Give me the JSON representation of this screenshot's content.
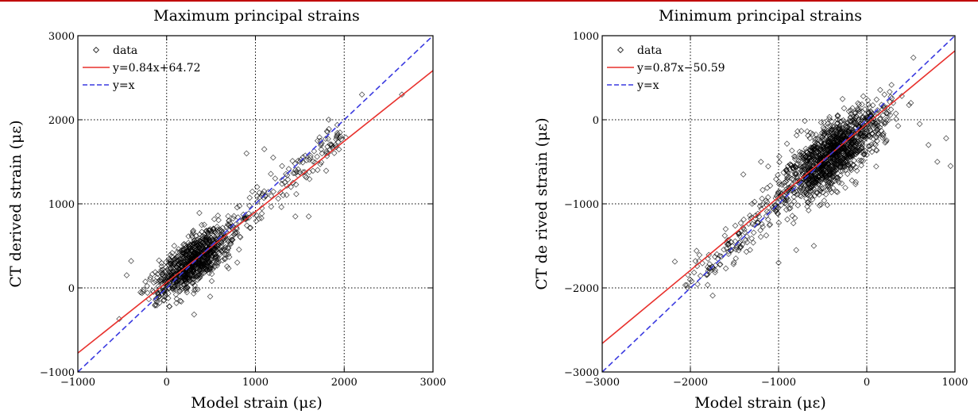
{
  "chart_data": [
    {
      "type": "scatter",
      "title": "Maximum principal strains",
      "xlabel": "Model strain (με)",
      "ylabel": "CT derived strain (με)",
      "xlim": [
        -1000,
        3000
      ],
      "ylim": [
        -1000,
        3000
      ],
      "xticks": [
        "−1000",
        "0",
        "1000",
        "2000",
        "3000"
      ],
      "yticks": [
        "−1000",
        "0",
        "1000",
        "2000",
        "3000"
      ],
      "xtick_values": [
        -1000,
        0,
        1000,
        2000,
        3000
      ],
      "ytick_values": [
        -1000,
        0,
        1000,
        2000,
        3000
      ],
      "grid": true,
      "legend_placement": "top-left",
      "series": [
        {
          "name": "data",
          "kind": "scatter",
          "marker": "diamond",
          "color": "#000000",
          "cluster": {
            "center": [
              300,
              310
            ],
            "count": 900,
            "slope": 0.9,
            "spread_major": 380,
            "spread_minor": 150
          },
          "tail": {
            "from": [
              700,
              700
            ],
            "to": [
              2000,
              1850
            ],
            "count": 140,
            "jitter": 200
          },
          "outliers": [
            [
              2650,
              2300
            ],
            [
              2200,
              2300
            ],
            [
              1700,
              1750
            ],
            [
              1500,
              1500
            ],
            [
              1300,
              1450
            ],
            [
              1600,
              850
            ],
            [
              1450,
              850
            ],
            [
              1900,
              1700
            ],
            [
              1750,
              1600
            ],
            [
              -450,
              150
            ],
            [
              -400,
              320
            ],
            [
              1100,
              1650
            ],
            [
              1200,
              1550
            ],
            [
              900,
              1600
            ],
            [
              1400,
              1200
            ]
          ]
        },
        {
          "name": "y=0.84x+64.72",
          "kind": "line",
          "color": "#e8302c",
          "style": "solid",
          "slope": 0.84,
          "intercept": 64.72
        },
        {
          "name": "y=x",
          "kind": "line",
          "color": "#3a3ae0",
          "style": "dashed",
          "slope": 1,
          "intercept": 0
        }
      ]
    },
    {
      "type": "scatter",
      "title": "Minimum principal strains",
      "xlabel": "Model strain (με)",
      "ylabel": "CT de rived strain (με)",
      "xlim": [
        -3000,
        1000
      ],
      "ylim": [
        -3000,
        1000
      ],
      "xticks": [
        "−3000",
        "−2000",
        "−1000",
        "0",
        "1000"
      ],
      "yticks": [
        "−3000",
        "−2000",
        "−1000",
        "0",
        "1000"
      ],
      "xtick_values": [
        -3000,
        -2000,
        -1000,
        0,
        1000
      ],
      "ytick_values": [
        -3000,
        -2000,
        -1000,
        0,
        1000
      ],
      "grid": true,
      "legend_placement": "top-left",
      "series": [
        {
          "name": "data",
          "kind": "scatter",
          "marker": "diamond",
          "color": "#000000",
          "cluster": {
            "center": [
              -400,
              -420
            ],
            "count": 1300,
            "slope": 0.95,
            "spread_major": 520,
            "spread_minor": 190
          },
          "tail": {
            "from": [
              -900,
              -900
            ],
            "to": [
              -2000,
              -1950
            ],
            "count": 140,
            "jitter": 220
          },
          "outliers": [
            [
              300,
              200
            ],
            [
              700,
              -300
            ],
            [
              800,
              -500
            ],
            [
              900,
              -220
            ],
            [
              500,
              200
            ],
            [
              200,
              300
            ],
            [
              -1400,
              -650
            ],
            [
              -1600,
              -1300
            ],
            [
              -1700,
              -1600
            ],
            [
              -1800,
              -1800
            ],
            [
              -1000,
              -1700
            ],
            [
              -800,
              -1550
            ],
            [
              -600,
              -1500
            ],
            [
              -1200,
              -500
            ],
            [
              -1300,
              -1000
            ],
            [
              600,
              -50
            ],
            [
              950,
              -550
            ]
          ]
        },
        {
          "name": "y=0.87x−50.59",
          "kind": "line",
          "color": "#e8302c",
          "style": "solid",
          "slope": 0.87,
          "intercept": -50.59
        },
        {
          "name": "y=x",
          "kind": "line",
          "color": "#3a3ae0",
          "style": "dashed",
          "slope": 1,
          "intercept": 0
        }
      ]
    }
  ]
}
